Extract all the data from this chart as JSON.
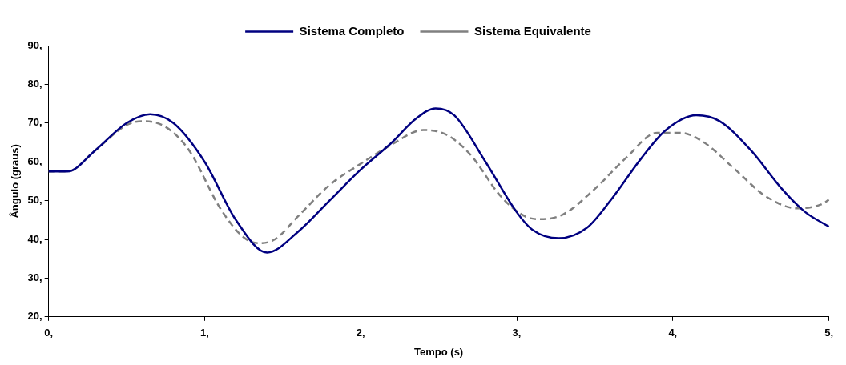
{
  "chart_data": {
    "type": "line",
    "xlabel": "Tempo (s)",
    "ylabel": "Ângulo (graus)",
    "xlim": [
      0,
      5
    ],
    "xticks": [
      {
        "value": 0,
        "label": "0,"
      },
      {
        "value": 1,
        "label": "1,"
      },
      {
        "value": 2,
        "label": "2,"
      },
      {
        "value": 3,
        "label": "3,"
      },
      {
        "value": 4,
        "label": "4,"
      },
      {
        "value": 5,
        "label": "5,"
      }
    ],
    "ylim": [
      20,
      90
    ],
    "yticks": [
      {
        "value": 20,
        "label": "20,"
      },
      {
        "value": 30,
        "label": "30,"
      },
      {
        "value": 40,
        "label": "40,"
      },
      {
        "value": 50,
        "label": "50,"
      },
      {
        "value": 60,
        "label": "60,"
      },
      {
        "value": 70,
        "label": "70,"
      },
      {
        "value": 80,
        "label": "80,"
      },
      {
        "value": 90,
        "label": "90,"
      }
    ],
    "grid": false,
    "legend": "top",
    "marker": "none",
    "series": [
      {
        "name": "Sistema Completo",
        "color": "#000080",
        "line_style": "solid",
        "x": [
          0,
          0.12,
          0.3,
          0.5,
          0.65,
          0.8,
          1.0,
          1.2,
          1.4,
          1.6,
          1.8,
          2.0,
          2.2,
          2.35,
          2.48,
          2.6,
          2.8,
          3.0,
          3.1,
          3.27,
          3.45,
          3.6,
          3.8,
          3.95,
          4.15,
          4.3,
          4.5,
          4.7,
          4.85,
          5.0
        ],
        "values": [
          57.5,
          57.5,
          63,
          70,
          72.3,
          70,
          60,
          45,
          36.6,
          42,
          50,
          58,
          65,
          71,
          73.8,
          72,
          60,
          47,
          42.5,
          40.3,
          43,
          50,
          61,
          68,
          72,
          70.5,
          63,
          53,
          47,
          43.3
        ]
      },
      {
        "name": "Sistema Equivalente",
        "color": "#808080",
        "line_style": "dashed",
        "x": [
          0,
          0.12,
          0.3,
          0.5,
          0.6,
          0.75,
          0.9,
          1.1,
          1.25,
          1.35,
          1.45,
          1.6,
          1.8,
          2.0,
          2.2,
          2.4,
          2.55,
          2.7,
          2.9,
          3.05,
          3.15,
          3.3,
          3.5,
          3.7,
          3.9,
          4.05,
          4.2,
          4.4,
          4.6,
          4.8,
          4.95,
          5.0
        ],
        "values": [
          57.5,
          57.5,
          63,
          69.5,
          70.5,
          69,
          63,
          48,
          40.5,
          39,
          40,
          46,
          54,
          59.5,
          64.5,
          68.2,
          67,
          62,
          51,
          46,
          45.2,
          46.5,
          53,
          61,
          67.5,
          67.5,
          65,
          58,
          51,
          48,
          49,
          50.2
        ]
      }
    ]
  }
}
